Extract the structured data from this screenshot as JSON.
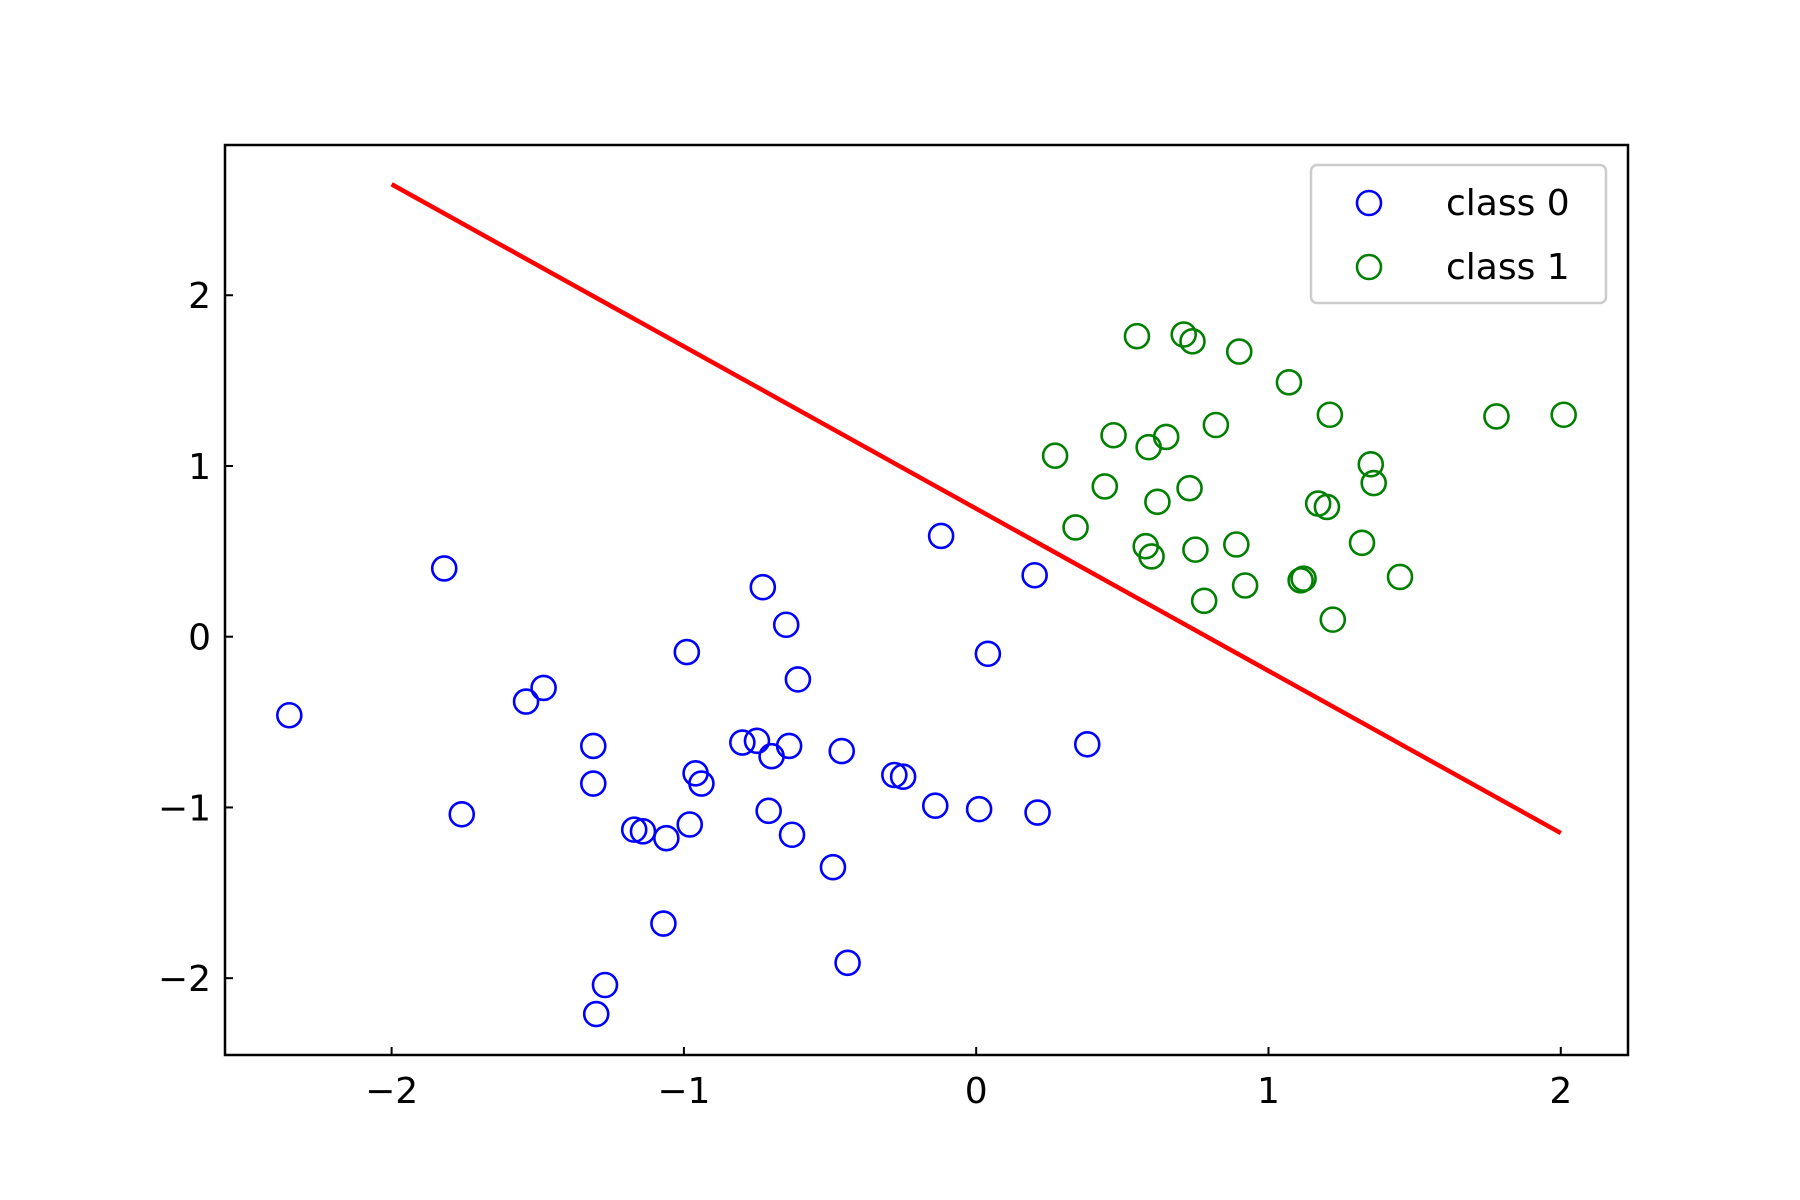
{
  "chart_data": {
    "type": "scatter",
    "xlim": [
      -2.57,
      2.23
    ],
    "ylim": [
      -2.45,
      2.88
    ],
    "xticks": [
      {
        "value": -2,
        "label": "−2"
      },
      {
        "value": -1,
        "label": "−1"
      },
      {
        "value": 0,
        "label": "0"
      },
      {
        "value": 1,
        "label": "1"
      },
      {
        "value": 2,
        "label": "2"
      }
    ],
    "yticks": [
      {
        "value": 2,
        "label": "2"
      },
      {
        "value": 1,
        "label": "1"
      },
      {
        "value": 0,
        "label": "0"
      },
      {
        "value": -1,
        "label": "−1"
      },
      {
        "value": -2,
        "label": "−2"
      }
    ],
    "grid": false,
    "legend_position": "top-right",
    "series": [
      {
        "name": "class 0",
        "color": "#0000ff",
        "marker": "open-circle",
        "points": [
          [
            -2.35,
            -0.46
          ],
          [
            -1.82,
            0.4
          ],
          [
            -1.76,
            -1.04
          ],
          [
            -1.54,
            -0.38
          ],
          [
            -1.48,
            -0.3
          ],
          [
            -1.31,
            -0.64
          ],
          [
            -1.31,
            -0.86
          ],
          [
            -1.17,
            -1.13
          ],
          [
            -1.14,
            -1.14
          ],
          [
            -1.06,
            -1.18
          ],
          [
            -1.07,
            -1.68
          ],
          [
            -0.99,
            -0.09
          ],
          [
            -0.98,
            -1.1
          ],
          [
            -0.96,
            -0.8
          ],
          [
            -0.94,
            -0.86
          ],
          [
            -0.8,
            -0.62
          ],
          [
            -0.75,
            -0.61
          ],
          [
            -0.73,
            0.29
          ],
          [
            -0.7,
            -0.7
          ],
          [
            -0.71,
            -1.02
          ],
          [
            -0.65,
            0.07
          ],
          [
            -0.64,
            -0.64
          ],
          [
            -0.63,
            -1.16
          ],
          [
            -0.61,
            -0.25
          ],
          [
            -0.49,
            -1.35
          ],
          [
            -0.46,
            -0.67
          ],
          [
            -0.44,
            -1.91
          ],
          [
            -0.28,
            -0.81
          ],
          [
            -0.25,
            -0.82
          ],
          [
            -0.14,
            -0.99
          ],
          [
            -0.12,
            0.59
          ],
          [
            0.01,
            -1.01
          ],
          [
            0.04,
            -0.1
          ],
          [
            0.2,
            0.36
          ],
          [
            0.21,
            -1.03
          ],
          [
            0.38,
            -0.63
          ],
          [
            -1.27,
            -2.04
          ],
          [
            -1.3,
            -2.21
          ]
        ]
      },
      {
        "name": "class 1",
        "color": "#008000",
        "marker": "open-circle",
        "points": [
          [
            0.27,
            1.06
          ],
          [
            0.34,
            0.64
          ],
          [
            0.44,
            0.88
          ],
          [
            0.47,
            1.18
          ],
          [
            0.55,
            1.76
          ],
          [
            0.58,
            0.53
          ],
          [
            0.59,
            1.11
          ],
          [
            0.6,
            0.47
          ],
          [
            0.62,
            0.79
          ],
          [
            0.65,
            1.17
          ],
          [
            0.71,
            1.77
          ],
          [
            0.73,
            0.87
          ],
          [
            0.74,
            1.73
          ],
          [
            0.75,
            0.51
          ],
          [
            0.78,
            0.21
          ],
          [
            0.82,
            1.24
          ],
          [
            0.89,
            0.54
          ],
          [
            0.9,
            1.67
          ],
          [
            0.92,
            0.3
          ],
          [
            1.07,
            1.49
          ],
          [
            1.11,
            0.33
          ],
          [
            1.12,
            0.34
          ],
          [
            1.17,
            0.78
          ],
          [
            1.2,
            0.76
          ],
          [
            1.21,
            1.3
          ],
          [
            1.22,
            0.1
          ],
          [
            1.32,
            0.55
          ],
          [
            1.35,
            1.01
          ],
          [
            1.36,
            0.9
          ],
          [
            1.45,
            0.35
          ],
          [
            1.78,
            1.29
          ],
          [
            2.01,
            1.3
          ]
        ]
      }
    ],
    "line": {
      "color": "#ff0000",
      "points": [
        [
          -2.0,
          2.65
        ],
        [
          2.0,
          -1.15
        ]
      ]
    }
  }
}
